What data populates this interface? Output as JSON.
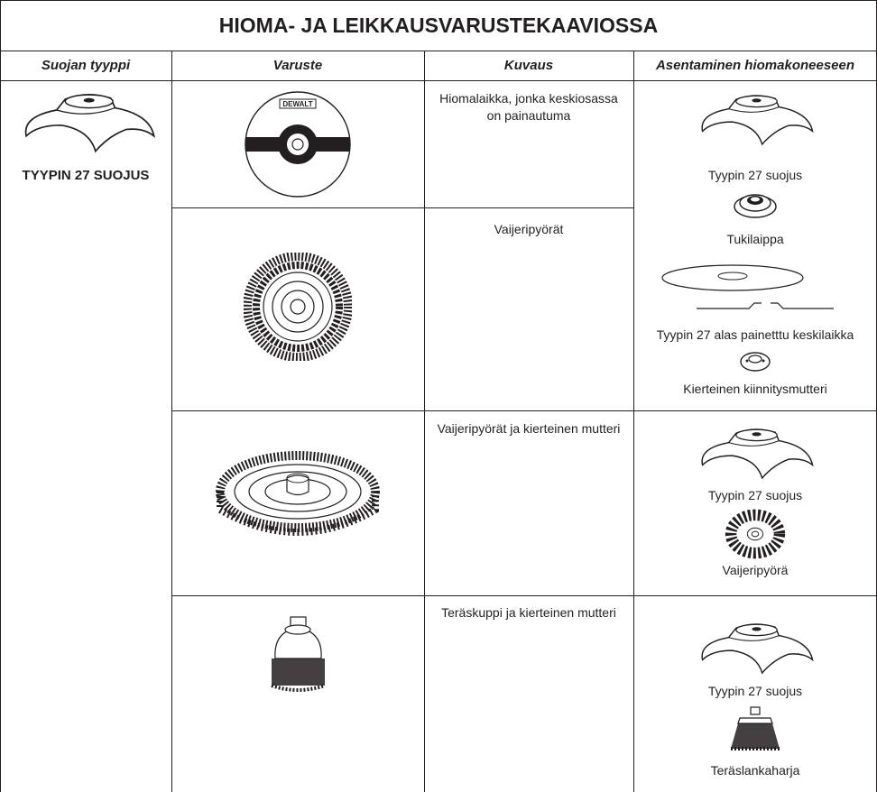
{
  "table": {
    "title": "HIOMA- JA LEIKKAUSVARUSTEKAAVIOSSA",
    "headers": [
      "Suojan tyyppi",
      "Varuste",
      "Kuvaus",
      "Asentaminen hiomakoneeseen"
    ],
    "guard": "TYYPIN 27 SUOJUS",
    "brand": "DEWALT",
    "descriptions": [
      "Hiomalaikka, jonka keskiosassa on painautuma",
      "Vaijeripyörät",
      "Vaijeripyörät ja kierteinen mutteri",
      "Teräskuppi ja kierteinen mutteri"
    ],
    "mounting": [
      [
        "Tyypin 27 suojus",
        "Tukilaippa",
        "Tyypin 27 alas painetttu keskilaikka",
        "Kierteinen kiinnitysmutteri"
      ],
      [
        "Tyypin 27 suojus",
        "Vaijeripyörä"
      ],
      [
        "Tyypin 27 suojus",
        "Teräslankaharja"
      ]
    ]
  }
}
